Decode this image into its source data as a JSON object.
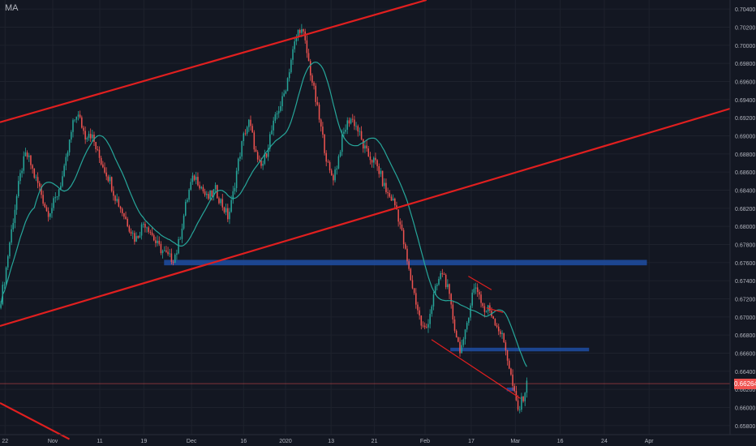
{
  "indicator": {
    "label": "MA"
  },
  "colors": {
    "background": "#131722",
    "grid": "#1e222d",
    "axis_text": "#b2b5be",
    "candle_up": "#26a69a",
    "candle_down": "#ef5350",
    "ma_line": "#26a69a",
    "trend_line": "#e01f1f",
    "zone": "#1e4a9c",
    "last_price_line": "#ef5350"
  },
  "chart_data": {
    "type": "candlestick",
    "title": "",
    "y_axis": {
      "range": [
        0.657,
        0.705
      ],
      "ticks": [
        "0.70400",
        "0.70200",
        "0.70000",
        "0.69800",
        "0.69600",
        "0.69400",
        "0.69200",
        "0.69000",
        "0.68800",
        "0.68600",
        "0.68400",
        "0.68200",
        "0.68000",
        "0.67800",
        "0.67600",
        "0.67400",
        "0.67200",
        "0.67000",
        "0.66800",
        "0.66600",
        "0.66400",
        "0.66200",
        "0.66000",
        "0.65800"
      ]
    },
    "x_axis": {
      "ticks": [
        "22",
        "Nov",
        "11",
        "19",
        "Dec",
        "16",
        "2020",
        "13",
        "21",
        "Feb",
        "17",
        "Mar",
        "16",
        "24",
        "Apr"
      ],
      "tick_positions": [
        0.7,
        7.3,
        13.8,
        19.9,
        26.5,
        33.7,
        39.5,
        45.8,
        51.8,
        58.8,
        65.2,
        71.3,
        77.5,
        83.6,
        89.8
      ]
    },
    "last_price": {
      "value": 0.66264,
      "label": "0.66264"
    },
    "close_series": [
      0.672,
      0.6745,
      0.678,
      0.681,
      0.684,
      0.6865,
      0.688,
      0.687,
      0.6855,
      0.6845,
      0.683,
      0.6815,
      0.682,
      0.683,
      0.6845,
      0.686,
      0.6885,
      0.691,
      0.6925,
      0.6915,
      0.69,
      0.6905,
      0.6895,
      0.688,
      0.687,
      0.686,
      0.685,
      0.6835,
      0.6825,
      0.6815,
      0.6805,
      0.6795,
      0.6785,
      0.6795,
      0.6805,
      0.68,
      0.679,
      0.678,
      0.6775,
      0.677,
      0.6765,
      0.6765,
      0.6775,
      0.68,
      0.6825,
      0.6845,
      0.6855,
      0.685,
      0.684,
      0.683,
      0.6835,
      0.684,
      0.683,
      0.682,
      0.681,
      0.683,
      0.686,
      0.6885,
      0.6905,
      0.6915,
      0.6895,
      0.687,
      0.6865,
      0.688,
      0.69,
      0.6915,
      0.693,
      0.694,
      0.696,
      0.6985,
      0.7005,
      0.702,
      0.701,
      0.6985,
      0.696,
      0.6935,
      0.691,
      0.6885,
      0.686,
      0.6855,
      0.687,
      0.6895,
      0.691,
      0.692,
      0.6915,
      0.6905,
      0.689,
      0.688,
      0.6875,
      0.687,
      0.686,
      0.6845,
      0.6835,
      0.683,
      0.682,
      0.68,
      0.6775,
      0.675,
      0.673,
      0.671,
      0.669,
      0.6685,
      0.6705,
      0.6725,
      0.674,
      0.675,
      0.6735,
      0.671,
      0.6685,
      0.6665,
      0.667,
      0.67,
      0.6725,
      0.6735,
      0.672,
      0.6705,
      0.671,
      0.67,
      0.669,
      0.668,
      0.6665,
      0.664,
      0.6615,
      0.6595,
      0.661,
      0.6625
    ],
    "ma_series_length": 20,
    "trend_lines": [
      {
        "name": "upper-channel",
        "from": [
          0,
          0.6915
        ],
        "to": [
          59,
          0.705
        ]
      },
      {
        "name": "lower-channel",
        "from": [
          0,
          0.669
        ],
        "to": [
          101,
          0.693
        ]
      },
      {
        "name": "lower-left-segment",
        "from": [
          0,
          0.6605
        ],
        "to": [
          9.6,
          0.6565
        ]
      },
      {
        "name": "wedge-bottom",
        "from": [
          59.7,
          0.6675
        ],
        "to": [
          72,
          0.661
        ]
      },
      {
        "name": "wedge-top",
        "from": [
          64.8,
          0.6745
        ],
        "to": [
          68,
          0.673
        ]
      },
      {
        "name": "wedge-mid",
        "from": [
          67.3,
          0.671
        ],
        "to": [
          69.6,
          0.6705
        ]
      }
    ],
    "zones": [
      {
        "name": "resistance-zone",
        "x_from": 22.7,
        "x_to": 89.5,
        "y_from": 0.6757,
        "y_to": 0.6763
      },
      {
        "name": "support-zone",
        "x_from": 62.3,
        "x_to": 81.5,
        "y_from": 0.6662,
        "y_to": 0.6666
      },
      {
        "name": "small-box",
        "x_from": 70.1,
        "x_to": 71.2,
        "y_from": 0.6618,
        "y_to": 0.6622
      }
    ]
  }
}
